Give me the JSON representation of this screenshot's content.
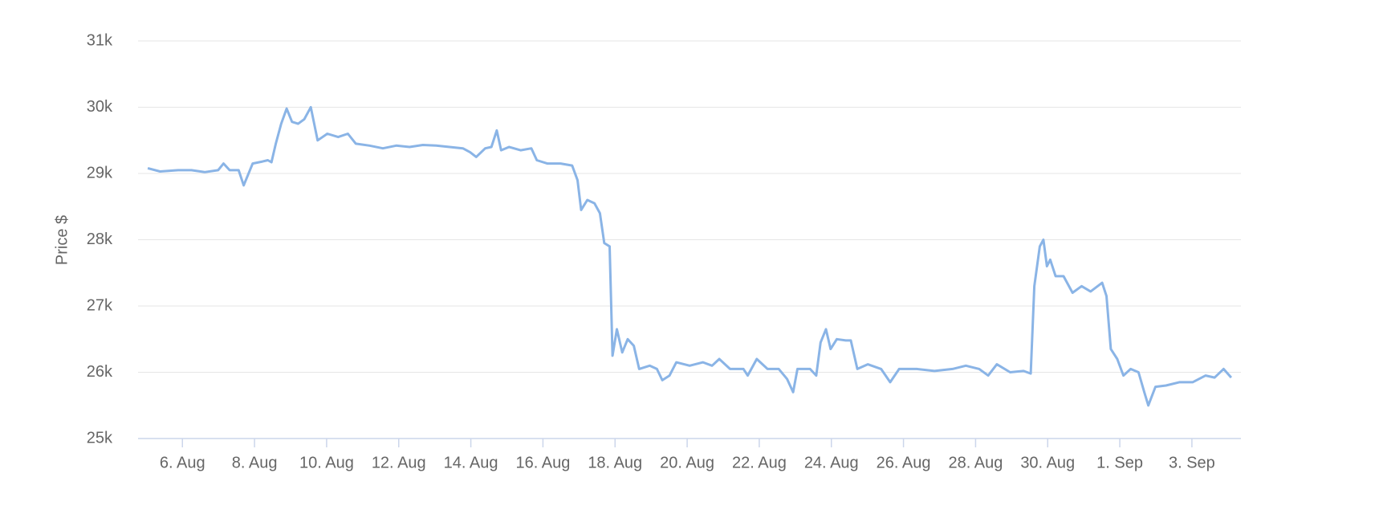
{
  "chart_data": {
    "type": "line",
    "y_axis_label": "Price $",
    "xlim": [
      4.77,
      35.36
    ],
    "ylim": [
      25000,
      31000
    ],
    "xticks": [
      {
        "value": 6,
        "label": "6. Aug"
      },
      {
        "value": 8,
        "label": "8. Aug"
      },
      {
        "value": 10,
        "label": "10. Aug"
      },
      {
        "value": 12,
        "label": "12. Aug"
      },
      {
        "value": 14,
        "label": "14. Aug"
      },
      {
        "value": 16,
        "label": "16. Aug"
      },
      {
        "value": 18,
        "label": "18. Aug"
      },
      {
        "value": 20,
        "label": "20. Aug"
      },
      {
        "value": 22,
        "label": "22. Aug"
      },
      {
        "value": 24,
        "label": "24. Aug"
      },
      {
        "value": 26,
        "label": "26. Aug"
      },
      {
        "value": 28,
        "label": "28. Aug"
      },
      {
        "value": 30,
        "label": "30. Aug"
      },
      {
        "value": 32,
        "label": "1. Sep"
      },
      {
        "value": 34,
        "label": "3. Sep"
      }
    ],
    "yticks": [
      {
        "value": 25000,
        "label": "25k"
      },
      {
        "value": 26000,
        "label": "26k"
      },
      {
        "value": 27000,
        "label": "27k"
      },
      {
        "value": 28000,
        "label": "28k"
      },
      {
        "value": 29000,
        "label": "29k"
      },
      {
        "value": 30000,
        "label": "30k"
      },
      {
        "value": 31000,
        "label": "31k"
      }
    ],
    "grid": true,
    "series": [
      {
        "color": "#8ab4e6",
        "x": [
          5.04,
          5.38,
          5.88,
          6.25,
          6.62,
          6.99,
          7.14,
          7.31,
          7.56,
          7.7,
          7.95,
          8.22,
          8.37,
          8.47,
          8.59,
          8.74,
          8.89,
          9.04,
          9.21,
          9.38,
          9.56,
          9.75,
          10.02,
          10.32,
          10.59,
          10.81,
          11.19,
          11.56,
          11.93,
          12.3,
          12.67,
          13.04,
          13.41,
          13.78,
          13.98,
          14.15,
          14.4,
          14.57,
          14.72,
          14.84,
          15.06,
          15.38,
          15.68,
          15.83,
          16.12,
          16.49,
          16.81,
          16.96,
          17.06,
          17.23,
          17.43,
          17.58,
          17.7,
          17.85,
          17.93,
          18.05,
          18.2,
          18.35,
          18.52,
          18.67,
          18.96,
          19.16,
          19.31,
          19.51,
          19.7,
          20.07,
          20.44,
          20.69,
          20.89,
          21.19,
          21.56,
          21.68,
          21.93,
          22.23,
          22.54,
          22.77,
          22.94,
          23.06,
          23.41,
          23.58,
          23.7,
          23.85,
          23.98,
          24.15,
          24.4,
          24.54,
          24.72,
          25.01,
          25.38,
          25.63,
          25.88,
          26.37,
          26.86,
          27.36,
          27.73,
          28.1,
          28.35,
          28.59,
          28.96,
          29.33,
          29.53,
          29.63,
          29.78,
          29.88,
          29.98,
          30.07,
          30.22,
          30.44,
          30.69,
          30.94,
          31.19,
          31.51,
          31.63,
          31.75,
          31.93,
          32.1,
          32.3,
          32.52,
          32.68,
          32.79,
          32.99,
          33.28,
          33.65,
          34.02,
          34.38,
          34.63,
          34.88,
          35.09
        ],
        "values": [
          29080,
          29030,
          29050,
          29050,
          29020,
          29050,
          29150,
          29050,
          29050,
          28820,
          29150,
          29180,
          29200,
          29170,
          29450,
          29750,
          29980,
          29780,
          29750,
          29820,
          30000,
          29500,
          29600,
          29550,
          29600,
          29450,
          29420,
          29380,
          29420,
          29400,
          29430,
          29420,
          29400,
          29380,
          29320,
          29250,
          29380,
          29400,
          29650,
          29350,
          29400,
          29350,
          29380,
          29200,
          29150,
          29150,
          29120,
          28900,
          28450,
          28600,
          28550,
          28400,
          27950,
          27900,
          26250,
          26650,
          26300,
          26500,
          26400,
          26050,
          26100,
          26050,
          25880,
          25950,
          26150,
          26100,
          26150,
          26100,
          26200,
          26050,
          26050,
          25950,
          26200,
          26050,
          26050,
          25900,
          25700,
          26050,
          26050,
          25950,
          26450,
          26650,
          26350,
          26500,
          26480,
          26480,
          26050,
          26120,
          26050,
          25850,
          26050,
          26050,
          26020,
          26050,
          26100,
          26050,
          25950,
          26120,
          26000,
          26020,
          25980,
          27300,
          27900,
          28000,
          27600,
          27700,
          27450,
          27450,
          27200,
          27300,
          27220,
          27350,
          27150,
          26350,
          26200,
          25950,
          26050,
          26000,
          25700,
          25500,
          25780,
          25800,
          25850,
          25850,
          25950,
          25920,
          26050,
          25920
        ]
      }
    ]
  }
}
